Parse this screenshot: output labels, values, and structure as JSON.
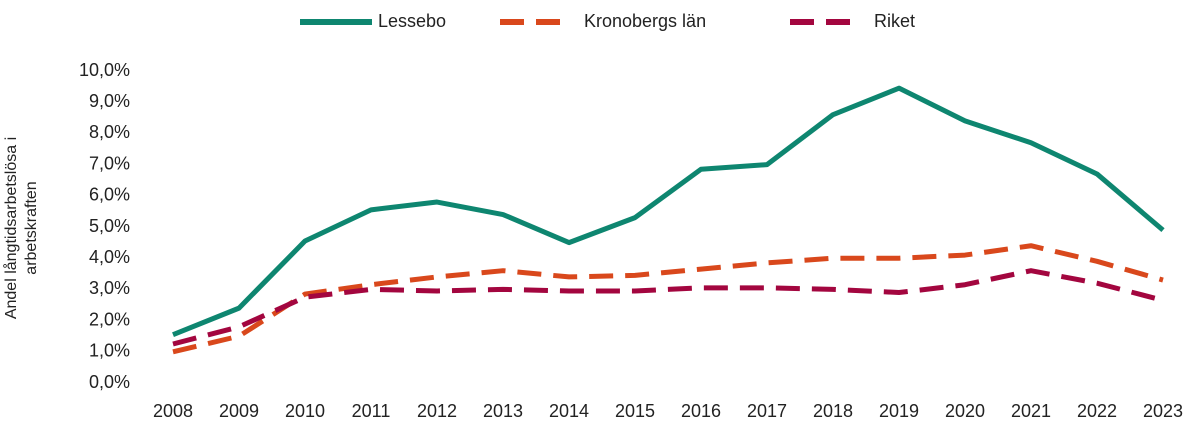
{
  "chart_data": {
    "type": "line",
    "y_label": [
      "Andel långtidsarbetslösa i",
      "arbetskraften"
    ],
    "categories": [
      "2008",
      "2009",
      "2010",
      "2011",
      "2012",
      "2013",
      "2014",
      "2015",
      "2016",
      "2017",
      "2018",
      "2019",
      "2020",
      "2021",
      "2022",
      "2023"
    ],
    "series": [
      {
        "name": "Lessebo",
        "color": "#0e8670",
        "dashed": false,
        "values": [
          1.55,
          2.4,
          4.55,
          5.55,
          5.8,
          5.4,
          4.5,
          5.3,
          6.85,
          7.0,
          8.6,
          9.45,
          8.4,
          7.7,
          6.7,
          4.9
        ]
      },
      {
        "name": "Kronobergs län",
        "color": "#d9481c",
        "dashed": true,
        "values": [
          1.0,
          1.5,
          2.85,
          3.15,
          3.4,
          3.6,
          3.4,
          3.45,
          3.65,
          3.85,
          4.0,
          4.0,
          4.1,
          4.4,
          3.9,
          3.3
        ]
      },
      {
        "name": "Riket",
        "color": "#a3063f",
        "dashed": true,
        "values": [
          1.25,
          1.8,
          2.75,
          3.0,
          2.95,
          3.0,
          2.95,
          2.95,
          3.05,
          3.05,
          3.0,
          2.9,
          3.15,
          3.6,
          3.2,
          2.65
        ]
      }
    ],
    "ylim": [
      0,
      10
    ],
    "yticks": [
      {
        "value": 0,
        "label": "0,0%"
      },
      {
        "value": 1,
        "label": "1,0%"
      },
      {
        "value": 2,
        "label": "2,0%"
      },
      {
        "value": 3,
        "label": "3,0%"
      },
      {
        "value": 4,
        "label": "4,0%"
      },
      {
        "value": 5,
        "label": "5,0%"
      },
      {
        "value": 6,
        "label": "6,0%"
      },
      {
        "value": 7,
        "label": "7,0%"
      },
      {
        "value": 8,
        "label": "8,0%"
      },
      {
        "value": 9,
        "label": "9,0%"
      },
      {
        "value": 10,
        "label": "10,0%"
      }
    ],
    "grid": false,
    "legend": "top"
  }
}
